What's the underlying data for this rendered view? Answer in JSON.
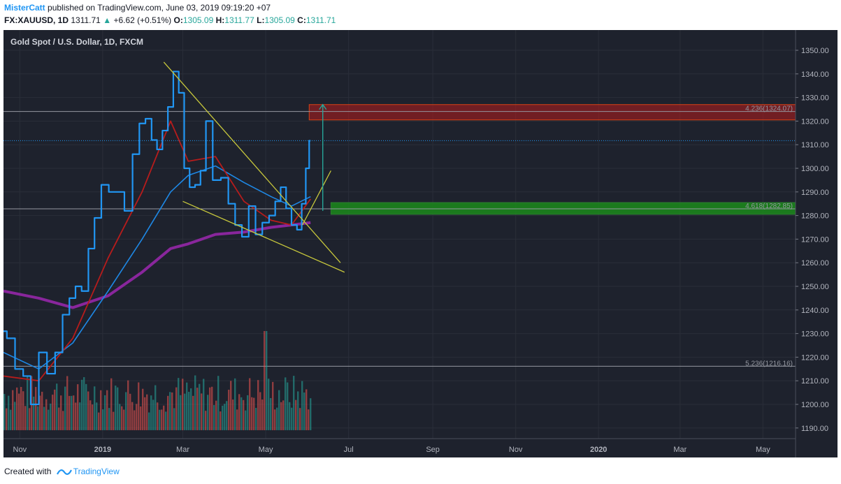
{
  "header": {
    "author": "MisterCatt",
    "published_text": "published on TradingView.com, June 03, 2019 09:19:20 +07",
    "symbol": "FX:XAUUSD, 1D",
    "last": "1311.71",
    "change": "+6.62 (+0.51%)",
    "o_label": "O:",
    "o": "1305.09",
    "h_label": "H:",
    "h": "1311.77",
    "l_label": "L:",
    "l": "1305.09",
    "c_label": "C:",
    "c": "1311.71"
  },
  "footer": {
    "created_with": "Created with",
    "brand": "TradingView"
  },
  "colors": {
    "background": "#1e222d",
    "price_line": "#2196f3",
    "ma_fast": "#b71c1c",
    "ma_slow": "#1e88e5",
    "ma_long": "#9c27b0",
    "wedge": "#c8c83c",
    "target_zone": "#b71c1c",
    "support_zone": "#1b8a1b",
    "arrow": "#26a69a",
    "volume_up": "#26a69a",
    "volume_down": "#ef5350",
    "last_price_line": "#2196f3"
  },
  "chart_data": {
    "type": "line",
    "title": "Gold Spot / U.S. Dollar, 1D, FXCM",
    "y_axis": {
      "position": "right",
      "ylim": [
        1186,
        1355
      ],
      "ticks": [
        "1350.00",
        "1340.00",
        "1330.00",
        "1320.00",
        "1310.00",
        "1300.00",
        "1290.00",
        "1280.00",
        "1270.00",
        "1260.00",
        "1250.00",
        "1240.00",
        "1230.00",
        "1220.00",
        "1210.00",
        "1200.00",
        "1190.00"
      ]
    },
    "x_axis": {
      "tick_labels": [
        "Nov",
        "2019",
        "Mar",
        "May",
        "Jul",
        "Sep",
        "Nov",
        "2020",
        "Mar",
        "May"
      ],
      "bold_labels": [
        "2019",
        "2020"
      ],
      "range": [
        "2018-10-20",
        "2020-05-25"
      ]
    },
    "grid": true,
    "series": [
      {
        "style": "step",
        "x": [
          "2018-10-20",
          "2018-10-25",
          "2018-11-01",
          "2018-11-06",
          "2018-11-12",
          "2018-11-18",
          "2018-11-24",
          "2018-11-30",
          "2018-12-05",
          "2018-12-10",
          "2018-12-14",
          "2018-12-19",
          "2018-12-24",
          "2018-12-28",
          "2019-01-03",
          "2019-01-08",
          "2019-01-14",
          "2019-01-20",
          "2019-01-26",
          "2019-01-30",
          "2019-02-04",
          "2019-02-08",
          "2019-02-12",
          "2019-02-16",
          "2019-02-20",
          "2019-02-24",
          "2019-02-28",
          "2019-03-04",
          "2019-03-08",
          "2019-03-12",
          "2019-03-16",
          "2019-03-20",
          "2019-03-26",
          "2019-04-01",
          "2019-04-06",
          "2019-04-11",
          "2019-04-16",
          "2019-04-21",
          "2019-04-26",
          "2019-05-01",
          "2019-05-06",
          "2019-05-10",
          "2019-05-14",
          "2019-05-18",
          "2019-05-22",
          "2019-05-26",
          "2019-05-29",
          "2019-06-01",
          "2019-06-03"
        ],
        "y": [
          1231,
          1228,
          1215,
          1212,
          1200,
          1222,
          1213,
          1222,
          1238,
          1245,
          1250,
          1248,
          1266,
          1279,
          1293,
          1290,
          1290,
          1282,
          1306,
          1319,
          1321,
          1312,
          1308,
          1316,
          1326,
          1341,
          1332,
          1300,
          1292,
          1293,
          1299,
          1320,
          1295,
          1296,
          1285,
          1276,
          1271,
          1284,
          1272,
          1277,
          1280,
          1286,
          1292,
          1283,
          1276,
          1274,
          1285,
          1300,
          1311.71
        ]
      },
      {
        "x": [
          "2018-10-20",
          "2018-11-15",
          "2018-12-10",
          "2019-01-05",
          "2019-01-30",
          "2019-02-20",
          "2019-03-05",
          "2019-03-25",
          "2019-04-15",
          "2019-05-05",
          "2019-05-20",
          "2019-06-03"
        ],
        "y": [
          1212,
          1210,
          1228,
          1262,
          1290,
          1320,
          1303,
          1305,
          1286,
          1278,
          1276,
          1287
        ]
      },
      {
        "x": [
          "2018-10-20",
          "2018-11-15",
          "2018-12-10",
          "2019-01-05",
          "2019-01-30",
          "2019-02-20",
          "2019-03-05",
          "2019-03-25",
          "2019-04-15",
          "2019-05-05",
          "2019-05-20",
          "2019-06-03"
        ],
        "y": [
          1222,
          1215,
          1226,
          1248,
          1270,
          1290,
          1297,
          1301,
          1294,
          1288,
          1284,
          1288
        ]
      },
      {
        "x": [
          "2018-10-20",
          "2018-11-15",
          "2018-12-10",
          "2019-01-05",
          "2019-01-30",
          "2019-02-20",
          "2019-03-05",
          "2019-03-25",
          "2019-04-15",
          "2019-05-05",
          "2019-05-20",
          "2019-06-03"
        ],
        "y": [
          1248,
          1245,
          1241,
          1246,
          1256,
          1266,
          1268,
          1272,
          1273,
          1275,
          1276,
          1277
        ]
      }
    ],
    "volume": {
      "x_range": [
        "2018-10-20",
        "2019-06-03"
      ],
      "pattern": "mixed_up_down_bars",
      "spike_date": "2019-04-30"
    },
    "annotations": {
      "fib_levels": [
        {
          "label": "4.236(1324.07)",
          "value": 1324.07
        },
        {
          "label": "4.618(1282.85)",
          "value": 1282.85
        },
        {
          "label": "5.236(1216.16)",
          "value": 1216.16
        }
      ],
      "target_zone": [
        1320.5,
        1327
      ],
      "support_zone": [
        1280.5,
        1285.5
      ],
      "wedge_upper": [
        {
          "x": "2019-02-15",
          "y": 1345
        },
        {
          "x": "2019-06-25",
          "y": 1260
        }
      ],
      "wedge_lower": [
        {
          "x": "2019-03-01",
          "y": 1286
        },
        {
          "x": "2019-06-28",
          "y": 1256
        }
      ],
      "breakout_line": [
        {
          "x": "2019-05-28",
          "y": 1276
        },
        {
          "x": "2019-06-18",
          "y": 1299
        }
      ],
      "target_arrow": [
        {
          "x": "2019-06-12",
          "y": 1282
        },
        {
          "x": "2019-06-12",
          "y": 1327
        }
      ],
      "last_price": 1311.71
    }
  }
}
